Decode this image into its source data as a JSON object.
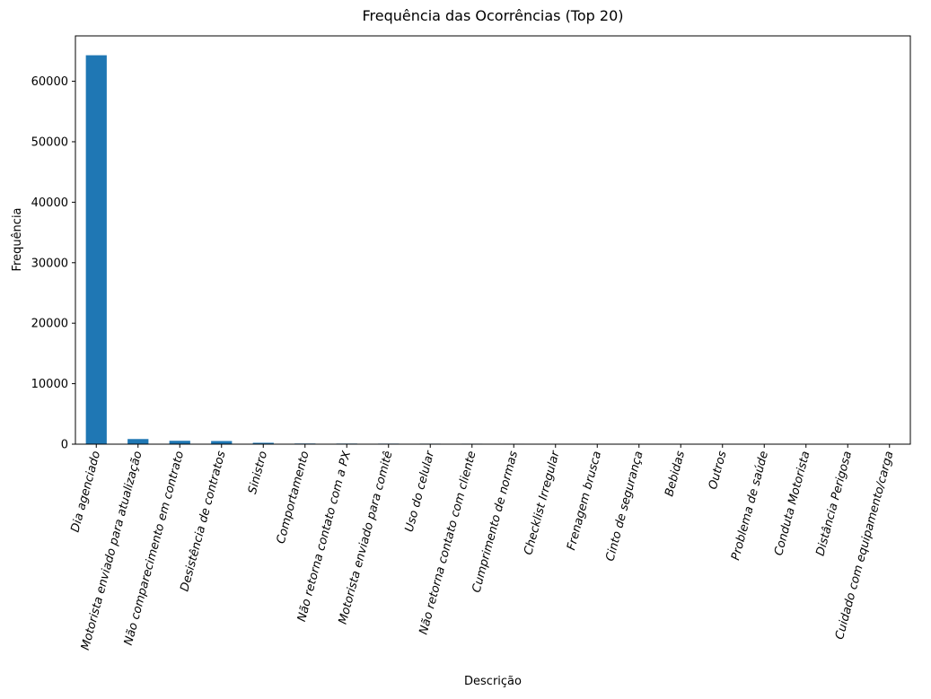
{
  "chart_data": {
    "type": "bar",
    "title": "Frequência das Ocorrências (Top 20)",
    "xlabel": "Descrição",
    "ylabel": "Frequência",
    "categories": [
      "Dia agenciado",
      "Motorista enviado para atualização",
      "Não comparecimento em contrato",
      "Desistência de contratos",
      "Sinistro",
      "Comportamento",
      "Não retorna contato com a PX",
      "Motorista enviado para comitê",
      "Uso do celular",
      "Não retorna contato com cliente",
      "Cumprimento de normas",
      "Checklist Irregular",
      "Frenagem brusca",
      "Cinto de segurança",
      "Bebidas",
      "Outros",
      "Problema de saúde",
      "Conduta Motorista",
      "Distância Perigosa",
      "Cuidado com equipamento/carga"
    ],
    "values": [
      64300,
      850,
      560,
      520,
      230,
      110,
      100,
      90,
      85,
      80,
      75,
      70,
      65,
      60,
      55,
      50,
      20,
      15,
      10,
      8
    ],
    "ylim": [
      0,
      67500
    ],
    "yticks": [
      0,
      10000,
      20000,
      30000,
      40000,
      50000,
      60000
    ],
    "grid": false,
    "legend": "none",
    "bar_color": "#1f77b4",
    "category_label_rotation_deg": 75
  }
}
